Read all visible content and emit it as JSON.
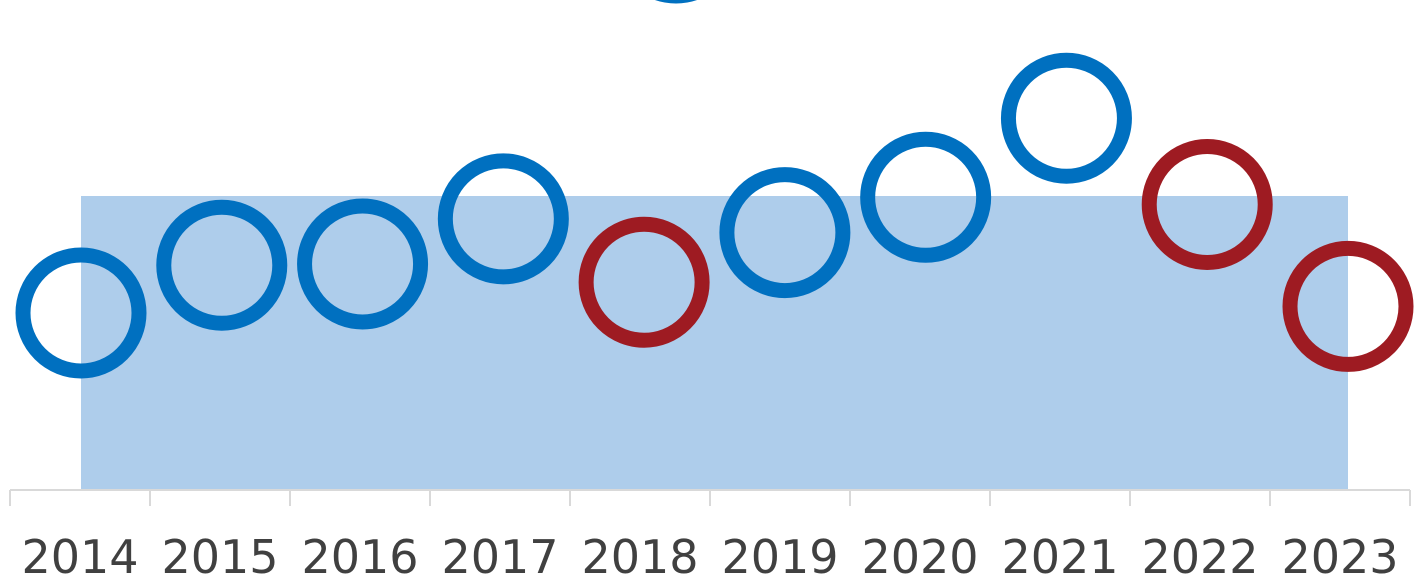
{
  "chart_data": {
    "type": "scatter",
    "title": "",
    "xlabel": "",
    "ylabel": "",
    "categories": [
      "2014",
      "2015",
      "2016",
      "2017",
      "2018",
      "2019",
      "2020",
      "2021",
      "2022",
      "2023"
    ],
    "series": [
      {
        "values": [
          27.1,
          34.4,
          34.6,
          41.5,
          31.8,
          39.4,
          44.8,
          56.9,
          43.7,
          28.1
        ],
        "point_colors": [
          "#0070c0",
          "#0070c0",
          "#0070c0",
          "#0070c0",
          "#9e1b22",
          "#0070c0",
          "#0070c0",
          "#0070c0",
          "#9e1b22",
          "#9e1b22"
        ]
      }
    ],
    "reference_band": {
      "value": 45,
      "color": "#aecdeb"
    },
    "ylim": [
      0,
      75
    ],
    "grid": false,
    "legend": "none"
  }
}
